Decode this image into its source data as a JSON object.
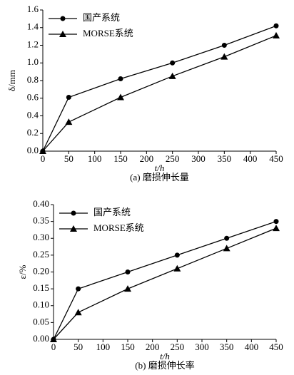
{
  "chart_data": [
    {
      "type": "line",
      "caption": "(a) 磨损伸长量",
      "ylabel": "δ/mm",
      "xlabel": "t/h",
      "x": [
        0,
        50,
        150,
        250,
        350,
        450
      ],
      "xlim": [
        0,
        450
      ],
      "xticks": [
        0,
        50,
        100,
        150,
        200,
        250,
        300,
        350,
        400,
        450
      ],
      "ylim": [
        0,
        1.6
      ],
      "yticks": [
        {
          "value": 0,
          "label": "0.0"
        },
        0.2,
        0.4,
        0.6,
        0.8,
        {
          "value": 1,
          "label": "1.0"
        },
        1.2,
        1.4,
        1.6
      ],
      "legend": "upper left",
      "series": [
        {
          "name": "国产系统",
          "color": "#000000",
          "marker": "circle",
          "values": [
            0,
            0.61,
            0.82,
            1.0,
            1.2,
            1.42
          ]
        },
        {
          "name": "MORSE系统",
          "color": "#000000",
          "marker": "triangle",
          "values": [
            0,
            0.33,
            0.61,
            0.85,
            1.07,
            1.31
          ]
        }
      ]
    },
    {
      "type": "line",
      "caption": "(b) 磨损伸长率",
      "ylabel": "ε/%",
      "xlabel": "t/h",
      "x": [
        0,
        50,
        150,
        250,
        350,
        450
      ],
      "xlim": [
        0,
        450
      ],
      "xticks": [
        0,
        50,
        100,
        150,
        200,
        250,
        300,
        350,
        400,
        450
      ],
      "ylim": [
        0,
        0.4
      ],
      "yticks": [
        {
          "value": 0,
          "label": "0.00"
        },
        0.05,
        {
          "value": 0.1,
          "label": "0.10"
        },
        0.15,
        {
          "value": 0.2,
          "label": "0.20"
        },
        0.25,
        {
          "value": 0.3,
          "label": "0.30"
        },
        0.35,
        {
          "value": 0.4,
          "label": "0.40"
        }
      ],
      "legend": "upper left",
      "series": [
        {
          "name": "国产系统",
          "color": "#000000",
          "marker": "circle",
          "values": [
            0,
            0.15,
            0.2,
            0.25,
            0.3,
            0.35
          ]
        },
        {
          "name": "MORSE系统",
          "color": "#000000",
          "marker": "triangle",
          "values": [
            0,
            0.08,
            0.15,
            0.21,
            0.27,
            0.33
          ]
        }
      ]
    }
  ]
}
